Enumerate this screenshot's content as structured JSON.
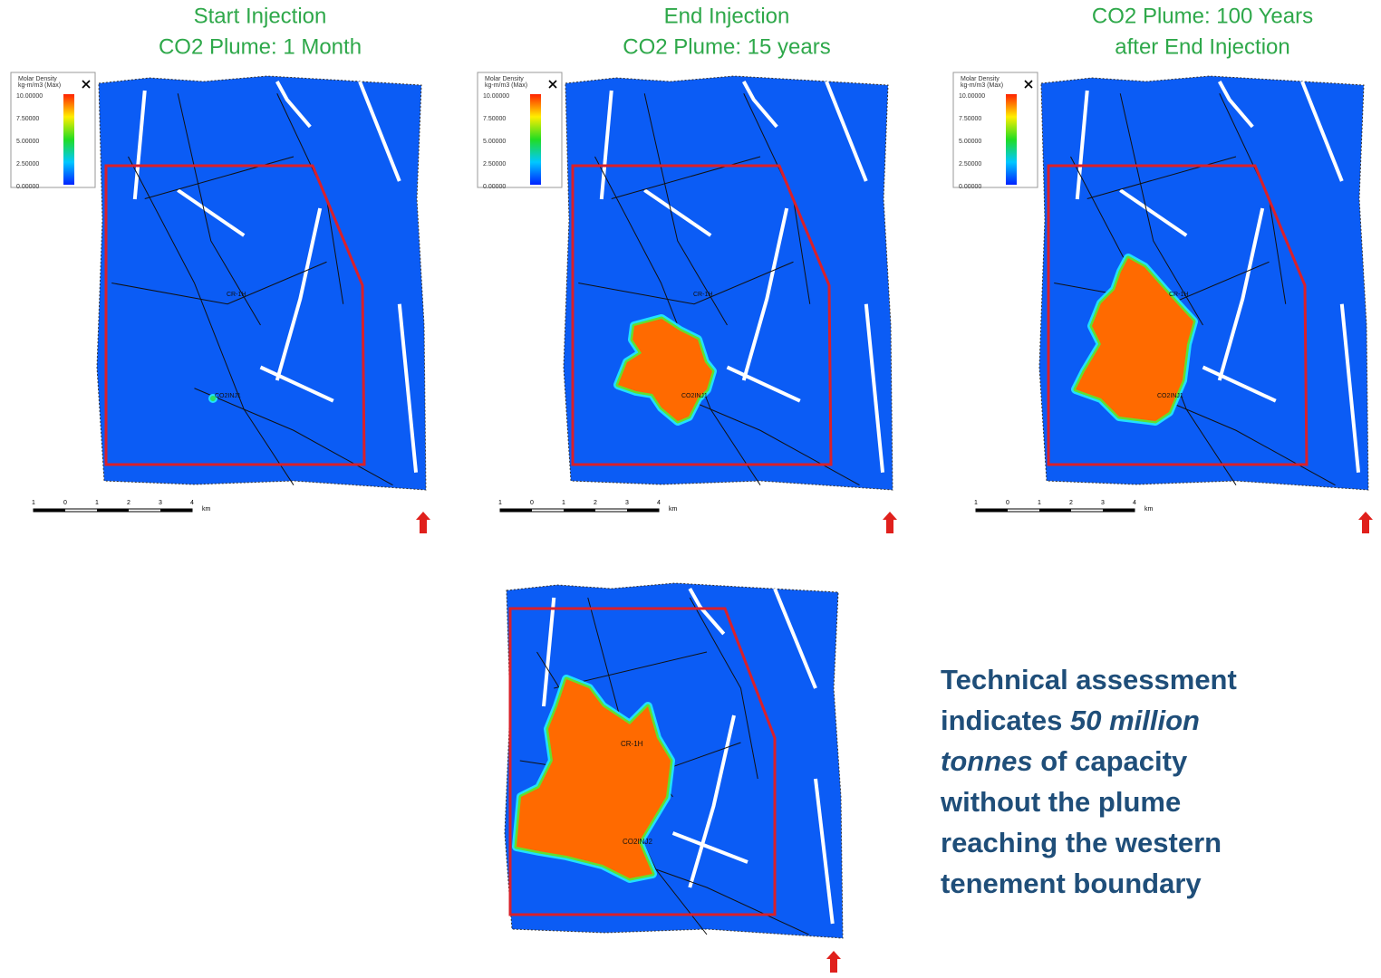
{
  "panels": [
    {
      "title": [
        "Start Injection",
        "CO2 Plume: 1 Month"
      ],
      "legend": {
        "title": [
          "Molar Density",
          "kg-m/m3 (Max)"
        ],
        "labels": [
          "10.00000",
          "7.50000",
          "5.00000",
          "2.50000",
          "0.00000"
        ]
      },
      "scale": {
        "labels": [
          "1",
          "0",
          "1",
          "2",
          "3",
          "4"
        ],
        "unit": "km"
      },
      "wells": [
        "CR-1H",
        "CO2INJ1"
      ]
    },
    {
      "title": [
        "End Injection",
        "CO2 Plume: 15 years"
      ],
      "legend": {
        "title": [
          "Molar Density",
          "kg-m/m3 (Max)"
        ],
        "labels": [
          "10.00000",
          "7.50000",
          "5.00000",
          "2.50000",
          "0.00000"
        ]
      },
      "scale": {
        "labels": [
          "1",
          "0",
          "1",
          "2",
          "3",
          "4"
        ],
        "unit": "km"
      },
      "wells": [
        "CR-1H",
        "CO2INJ1"
      ]
    },
    {
      "title": [
        "CO2 Plume: 100 Years",
        "after End Injection"
      ],
      "legend": {
        "title": [
          "Molar Density",
          "kg-m/m3 (Max)"
        ],
        "labels": [
          "10.00000",
          "7.50000",
          "5.00000",
          "2.50000",
          "0.00000"
        ]
      },
      "scale": {
        "labels": [
          "1",
          "0",
          "1",
          "2",
          "3",
          "4"
        ],
        "unit": "km"
      },
      "wells": [
        "CR-1H",
        "CO2INJ1"
      ]
    }
  ],
  "bottom_map": {
    "wells": [
      "CR-1H",
      "CO2INJ2"
    ]
  },
  "note": {
    "before": "Technical assessment indicates",
    "emphasis": "50 million tonnes",
    "after": "of capacity without the plume reaching the western tenement boundary"
  }
}
